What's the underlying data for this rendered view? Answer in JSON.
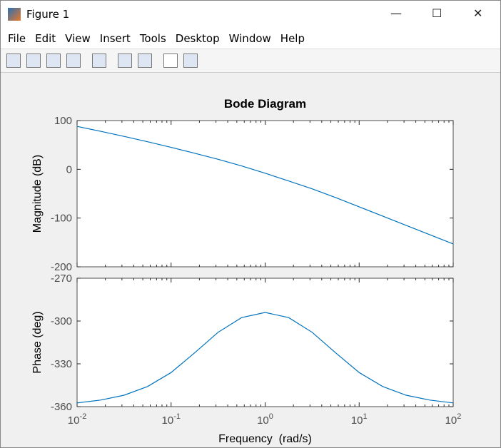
{
  "window": {
    "title": "Figure 1",
    "menu": [
      "File",
      "Edit",
      "View",
      "Insert",
      "Tools",
      "Desktop",
      "Window",
      "Help"
    ]
  },
  "chart_data": [
    {
      "type": "line",
      "title": "Bode Diagram",
      "ylabel": "Magnitude (dB)",
      "log_x": true,
      "x": [
        0.01,
        0.0178,
        0.0316,
        0.0562,
        0.1,
        0.178,
        0.316,
        0.562,
        1,
        1.78,
        3.16,
        5.62,
        10,
        17.8,
        31.6,
        56.2,
        100
      ],
      "series": [
        {
          "color": "#0072bd",
          "values": [
            88,
            78,
            67.5,
            56.5,
            45,
            33,
            20.5,
            7,
            -8,
            -24,
            -40,
            -58,
            -77,
            -96,
            -115,
            -134,
            -153
          ]
        }
      ],
      "xlim": [
        0.01,
        100
      ],
      "ylim": [
        -200,
        100
      ],
      "yticks": [
        -200,
        -100,
        0,
        100
      ],
      "grid": false
    },
    {
      "type": "line",
      "ylabel": "Phase (deg)",
      "xlabel": "Frequency  (rad/s)",
      "log_x": true,
      "x": [
        0.01,
        0.0178,
        0.0316,
        0.0562,
        0.1,
        0.178,
        0.316,
        0.562,
        1,
        1.78,
        3.16,
        5.62,
        10,
        17.8,
        31.6,
        56.2,
        100
      ],
      "series": [
        {
          "color": "#0072bd",
          "values": [
            -357.4,
            -355.4,
            -352,
            -345.9,
            -336.1,
            -322.3,
            -307.9,
            -297.6,
            -294,
            -297.6,
            -307.9,
            -322.3,
            -336.1,
            -345.9,
            -352,
            -355.4,
            -357.4
          ]
        }
      ],
      "xlim": [
        0.01,
        100
      ],
      "ylim": [
        -360,
        -270
      ],
      "yticks": [
        -360,
        -330,
        -300,
        -270
      ],
      "xticks": [
        {
          "value": 0.01,
          "label": [
            "10",
            "-2"
          ]
        },
        {
          "value": 0.1,
          "label": [
            "10",
            "-1"
          ]
        },
        {
          "value": 1,
          "label": [
            "10",
            "0"
          ]
        },
        {
          "value": 10,
          "label": [
            "10",
            "1"
          ]
        },
        {
          "value": 100,
          "label": [
            "10",
            "2"
          ]
        }
      ],
      "grid": false
    }
  ]
}
